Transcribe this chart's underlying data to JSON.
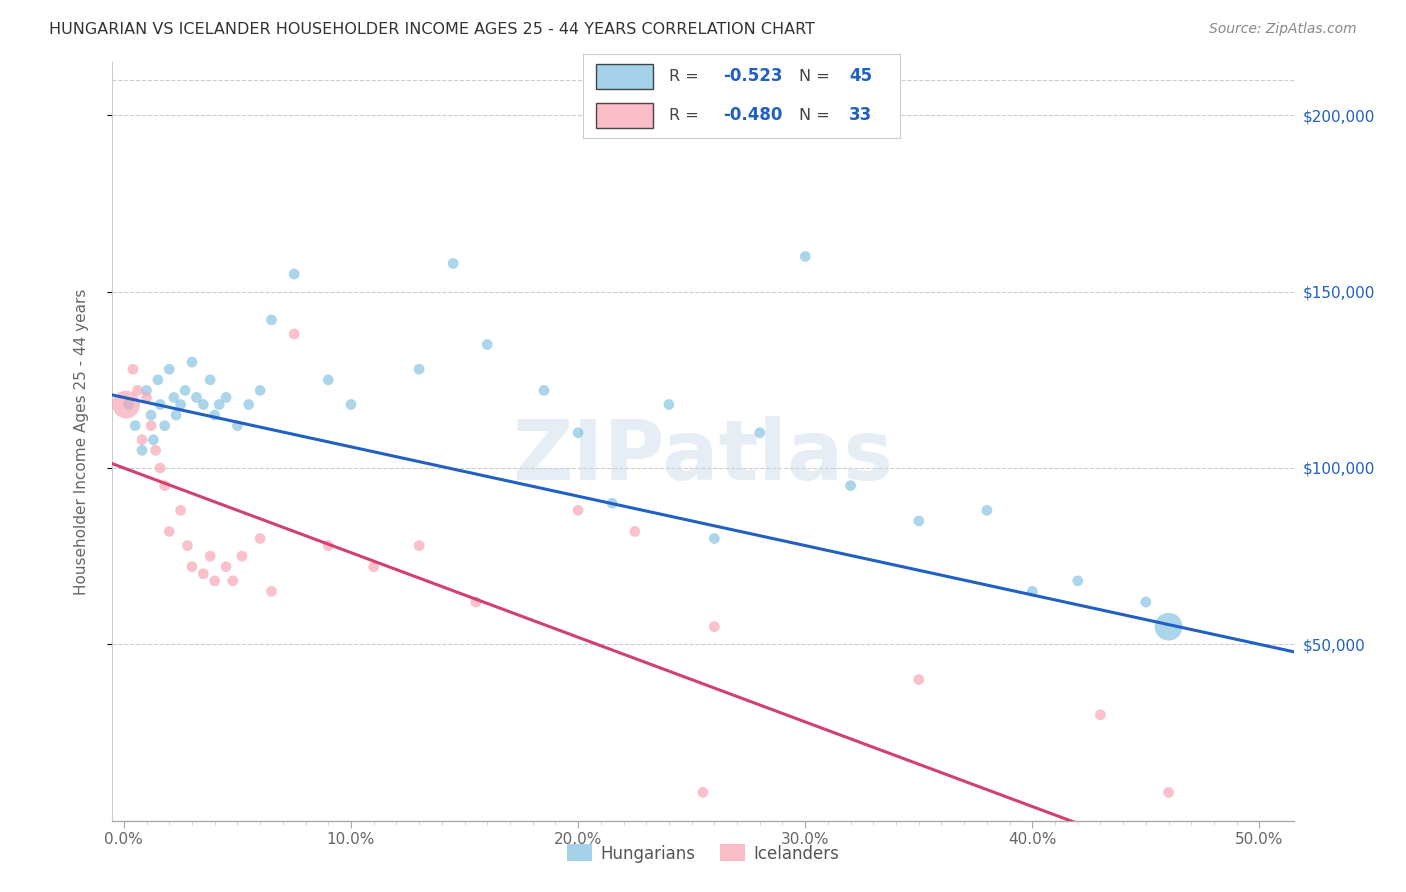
{
  "title": "HUNGARIAN VS ICELANDER HOUSEHOLDER INCOME AGES 25 - 44 YEARS CORRELATION CHART",
  "source": "Source: ZipAtlas.com",
  "ylabel": "Householder Income Ages 25 - 44 years",
  "ytick_labels": [
    "$50,000",
    "$100,000",
    "$150,000",
    "$200,000"
  ],
  "ytick_vals": [
    50000,
    100000,
    150000,
    200000
  ],
  "ylim": [
    0,
    215000
  ],
  "xlim": [
    -0.005,
    0.515
  ],
  "major_xtick_vals": [
    0.0,
    0.1,
    0.2,
    0.3,
    0.4,
    0.5
  ],
  "major_xtick_labels": [
    "0.0%",
    "10.0%",
    "20.0%",
    "30.0%",
    "40.0%",
    "50.0%"
  ],
  "minor_xtick_vals": [
    0.01,
    0.02,
    0.03,
    0.04,
    0.05,
    0.06,
    0.07,
    0.08,
    0.09,
    0.11,
    0.12,
    0.13,
    0.14,
    0.15,
    0.16,
    0.17,
    0.18,
    0.19,
    0.21,
    0.22,
    0.23,
    0.24,
    0.25,
    0.26,
    0.27,
    0.28,
    0.29,
    0.31,
    0.32,
    0.33,
    0.34,
    0.35,
    0.36,
    0.37,
    0.38,
    0.39,
    0.41,
    0.42,
    0.43,
    0.44,
    0.45,
    0.46,
    0.47,
    0.48,
    0.49
  ],
  "legend_label_blue": "Hungarians",
  "legend_label_pink": "Icelanders",
  "blue_color": "#7fbfdf",
  "pink_color": "#f8a0b0",
  "blue_line_color": "#2060c0",
  "pink_line_color": "#d04070",
  "watermark": "ZIPatlas",
  "blue_intercept": 120000,
  "blue_slope": -140000,
  "pink_intercept": 100000,
  "pink_slope": -240000,
  "blue_scatter": [
    [
      0.002,
      118000
    ],
    [
      0.005,
      112000
    ],
    [
      0.008,
      105000
    ],
    [
      0.01,
      122000
    ],
    [
      0.012,
      115000
    ],
    [
      0.013,
      108000
    ],
    [
      0.015,
      125000
    ],
    [
      0.016,
      118000
    ],
    [
      0.018,
      112000
    ],
    [
      0.02,
      128000
    ],
    [
      0.022,
      120000
    ],
    [
      0.023,
      115000
    ],
    [
      0.025,
      118000
    ],
    [
      0.027,
      122000
    ],
    [
      0.03,
      130000
    ],
    [
      0.032,
      120000
    ],
    [
      0.035,
      118000
    ],
    [
      0.038,
      125000
    ],
    [
      0.04,
      115000
    ],
    [
      0.042,
      118000
    ],
    [
      0.045,
      120000
    ],
    [
      0.05,
      112000
    ],
    [
      0.055,
      118000
    ],
    [
      0.06,
      122000
    ],
    [
      0.065,
      142000
    ],
    [
      0.075,
      155000
    ],
    [
      0.09,
      125000
    ],
    [
      0.1,
      118000
    ],
    [
      0.13,
      128000
    ],
    [
      0.145,
      158000
    ],
    [
      0.16,
      135000
    ],
    [
      0.185,
      122000
    ],
    [
      0.2,
      110000
    ],
    [
      0.215,
      90000
    ],
    [
      0.24,
      118000
    ],
    [
      0.26,
      80000
    ],
    [
      0.28,
      110000
    ],
    [
      0.3,
      160000
    ],
    [
      0.32,
      95000
    ],
    [
      0.35,
      85000
    ],
    [
      0.38,
      88000
    ],
    [
      0.4,
      65000
    ],
    [
      0.42,
      68000
    ],
    [
      0.45,
      62000
    ],
    [
      0.46,
      55000
    ]
  ],
  "blue_sizes": [
    60,
    60,
    60,
    60,
    60,
    60,
    60,
    60,
    60,
    60,
    60,
    60,
    60,
    60,
    60,
    60,
    60,
    60,
    60,
    60,
    60,
    60,
    60,
    60,
    60,
    60,
    60,
    60,
    60,
    60,
    60,
    60,
    60,
    60,
    60,
    60,
    60,
    60,
    60,
    60,
    60,
    60,
    60,
    60,
    400
  ],
  "pink_scatter": [
    [
      0.001,
      118000
    ],
    [
      0.004,
      128000
    ],
    [
      0.006,
      122000
    ],
    [
      0.008,
      108000
    ],
    [
      0.01,
      120000
    ],
    [
      0.012,
      112000
    ],
    [
      0.014,
      105000
    ],
    [
      0.016,
      100000
    ],
    [
      0.018,
      95000
    ],
    [
      0.02,
      82000
    ],
    [
      0.025,
      88000
    ],
    [
      0.028,
      78000
    ],
    [
      0.03,
      72000
    ],
    [
      0.035,
      70000
    ],
    [
      0.038,
      75000
    ],
    [
      0.04,
      68000
    ],
    [
      0.045,
      72000
    ],
    [
      0.048,
      68000
    ],
    [
      0.052,
      75000
    ],
    [
      0.06,
      80000
    ],
    [
      0.065,
      65000
    ],
    [
      0.075,
      138000
    ],
    [
      0.09,
      78000
    ],
    [
      0.11,
      72000
    ],
    [
      0.13,
      78000
    ],
    [
      0.155,
      62000
    ],
    [
      0.2,
      88000
    ],
    [
      0.225,
      82000
    ],
    [
      0.26,
      55000
    ],
    [
      0.35,
      40000
    ],
    [
      0.43,
      30000
    ],
    [
      0.255,
      8000
    ],
    [
      0.46,
      8000
    ]
  ],
  "pink_sizes": [
    400,
    60,
    60,
    60,
    60,
    60,
    60,
    60,
    60,
    60,
    60,
    60,
    60,
    60,
    60,
    60,
    60,
    60,
    60,
    60,
    60,
    60,
    60,
    60,
    60,
    60,
    60,
    60,
    60,
    60,
    60,
    60,
    60
  ]
}
